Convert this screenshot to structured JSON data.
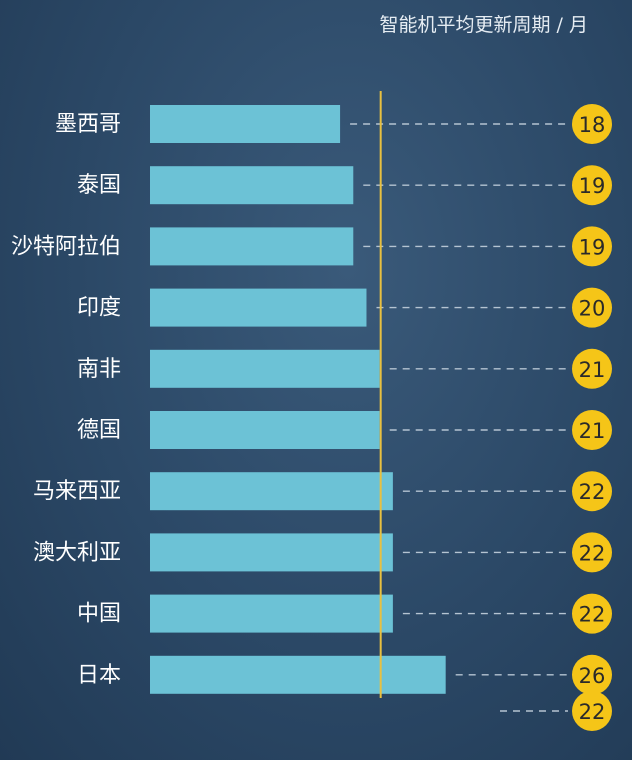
{
  "chart_data": {
    "type": "bar",
    "orientation": "horizontal",
    "title": "智能机平均更新周期 / 月",
    "categories": [
      "墨西哥",
      "泰国",
      "沙特阿拉伯",
      "印度",
      "南非",
      "德国",
      "马来西亚",
      "澳大利亚",
      "中国",
      "日本"
    ],
    "values": [
      18,
      19,
      19,
      20,
      21,
      21,
      22,
      22,
      22,
      26
    ],
    "average_value": 22,
    "reference_line_value": 21,
    "grid": false,
    "colors": {
      "bar": "#6cc2d6",
      "badge": "#f5c518",
      "badge_text": "#2a2a2a",
      "reference_line": "#e8c040",
      "dash": "#b5c4d2",
      "label": "#ffffff",
      "title": "#e6edf3"
    }
  }
}
